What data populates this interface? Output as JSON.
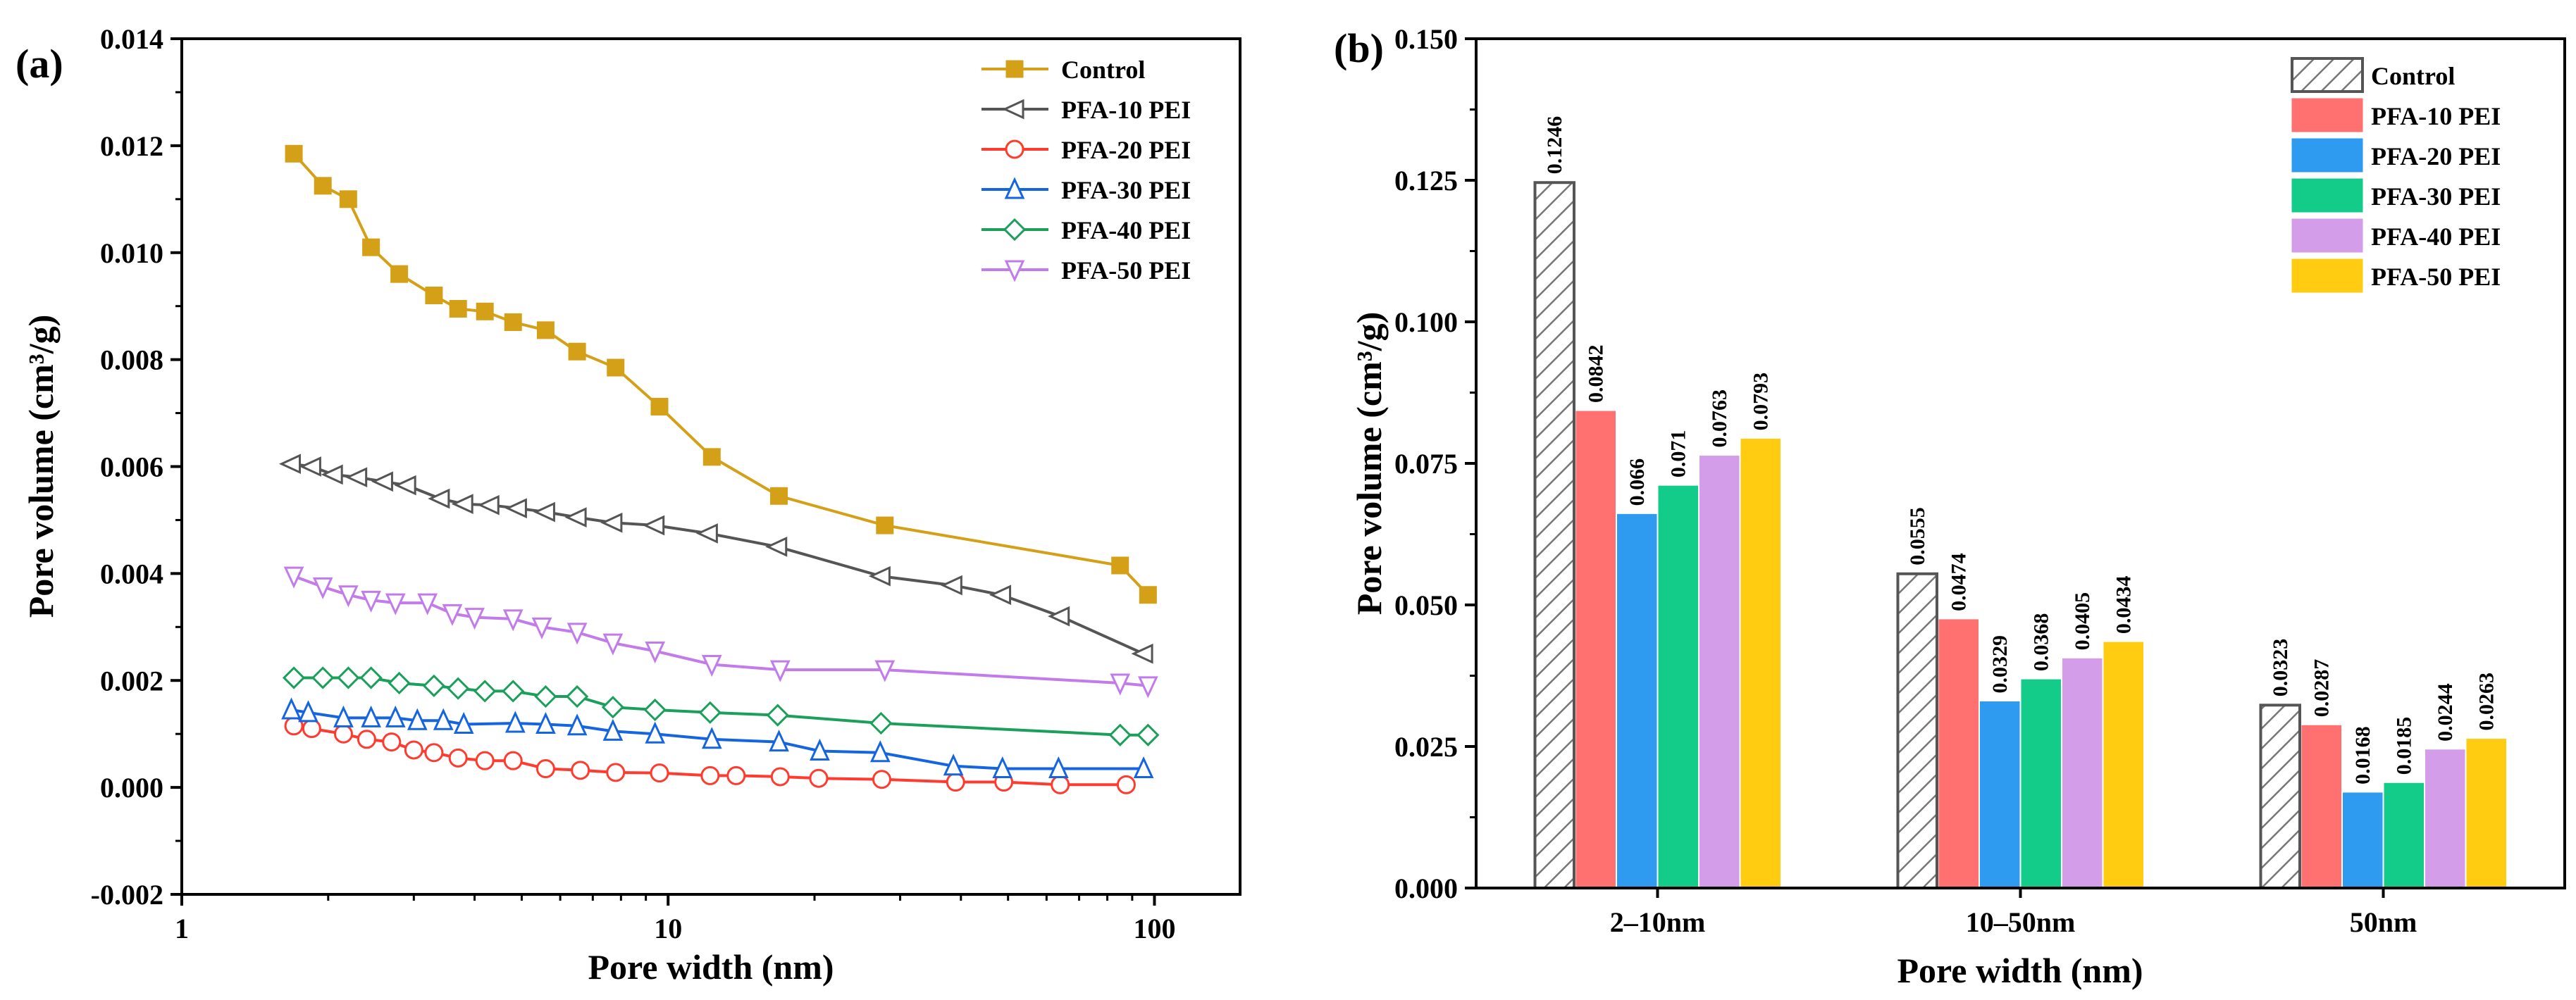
{
  "chart_data": [
    {
      "panel_label": "(a)",
      "type": "line",
      "xscale": "log",
      "xlabel": "Pore width (nm)",
      "ylabel": "Pore volume (cm³/g)",
      "xlim": [
        1,
        150
      ],
      "ylim": [
        -0.002,
        0.014
      ],
      "xticks": [
        1,
        10,
        100
      ],
      "xtick_labels": [
        "1",
        "10",
        "100"
      ],
      "yticks": [
        -0.002,
        0,
        0.002,
        0.004,
        0.006,
        0.008,
        0.01,
        0.012,
        0.014
      ],
      "ytick_labels": [
        "-0.002",
        "0.000",
        "0.002",
        "0.004",
        "0.006",
        "0.008",
        "0.010",
        "0.012",
        "0.014"
      ],
      "legend_position": "top-right",
      "series": [
        {
          "name": "Control",
          "color": "#D4A017",
          "marker": "square-filled",
          "x": [
            1.7,
            1.95,
            2.2,
            2.45,
            2.8,
            3.3,
            3.7,
            4.2,
            4.8,
            5.6,
            6.5,
            7.8,
            9.6,
            12.3,
            16.9,
            27.9,
            85.0,
            97.0
          ],
          "y": [
            0.01185,
            0.01125,
            0.011,
            0.0101,
            0.0096,
            0.0092,
            0.00895,
            0.0089,
            0.0087,
            0.00855,
            0.00815,
            0.00785,
            0.00712,
            0.00618,
            0.00545,
            0.0049,
            0.00415,
            0.0036
          ]
        },
        {
          "name": "PFA-10 PEI",
          "color": "#555555",
          "marker": "triangle-left-open",
          "x": [
            1.68,
            1.85,
            2.05,
            2.3,
            2.6,
            2.9,
            3.4,
            3.8,
            4.3,
            4.9,
            5.6,
            6.5,
            7.7,
            9.4,
            12.1,
            16.8,
            27.4,
            38.5,
            48.5,
            64.0,
            95.0
          ],
          "y": [
            0.00605,
            0.006,
            0.00585,
            0.0058,
            0.00572,
            0.00565,
            0.0054,
            0.0053,
            0.00528,
            0.00522,
            0.00515,
            0.00505,
            0.00495,
            0.0049,
            0.00475,
            0.0045,
            0.00395,
            0.00378,
            0.0036,
            0.0032,
            0.0025
          ]
        },
        {
          "name": "PFA-20 PEI",
          "color": "#FF3B30",
          "marker": "circle-open",
          "x": [
            1.7,
            1.85,
            2.15,
            2.4,
            2.7,
            3.0,
            3.3,
            3.7,
            4.2,
            4.8,
            5.6,
            6.6,
            7.8,
            9.6,
            12.2,
            13.8,
            17.0,
            20.4,
            27.5,
            39.0,
            49.0,
            64.0,
            87.5
          ],
          "y": [
            0.00115,
            0.0011,
            0.001,
            0.0009,
            0.00085,
            0.0007,
            0.00065,
            0.00055,
            0.0005,
            0.0005,
            0.00035,
            0.00032,
            0.00028,
            0.00027,
            0.00022,
            0.00022,
            0.0002,
            0.00017,
            0.00015,
            0.0001,
            0.0001,
            5e-05,
            5e-05
          ]
        },
        {
          "name": "PFA-30 PEI",
          "color": "#1565E0",
          "marker": "triangle-up-open",
          "x": [
            1.68,
            1.82,
            2.15,
            2.45,
            2.75,
            3.05,
            3.45,
            3.8,
            4.85,
            5.6,
            6.5,
            7.7,
            9.4,
            12.3,
            16.9,
            20.5,
            27.3,
            38.6,
            48.7,
            63.5,
            95.0
          ],
          "y": [
            0.00145,
            0.0014,
            0.0013,
            0.0013,
            0.0013,
            0.00125,
            0.00125,
            0.00118,
            0.0012,
            0.00118,
            0.00115,
            0.00105,
            0.001,
            0.0009,
            0.00085,
            0.00068,
            0.00065,
            0.0004,
            0.00035,
            0.00035,
            0.00035
          ]
        },
        {
          "name": "PFA-40 PEI",
          "color": "#1AA05A",
          "marker": "diamond-open",
          "x": [
            1.7,
            1.95,
            2.2,
            2.45,
            2.8,
            3.3,
            3.7,
            4.2,
            4.8,
            5.6,
            6.5,
            7.7,
            9.4,
            12.2,
            16.8,
            27.4,
            85.0,
            97.0
          ],
          "y": [
            0.00205,
            0.00205,
            0.00205,
            0.00205,
            0.00195,
            0.0019,
            0.00185,
            0.0018,
            0.0018,
            0.0017,
            0.0017,
            0.0015,
            0.00145,
            0.0014,
            0.00135,
            0.0012,
            0.00098,
            0.00098
          ]
        },
        {
          "name": "PFA-50 PEI",
          "color": "#C27BEA",
          "marker": "triangle-down-open",
          "x": [
            1.7,
            1.95,
            2.2,
            2.45,
            2.75,
            3.2,
            3.6,
            4.0,
            4.8,
            5.5,
            6.5,
            7.7,
            9.4,
            12.3,
            17.0,
            27.9,
            85.0,
            97.0
          ],
          "y": [
            0.00395,
            0.00375,
            0.0036,
            0.0035,
            0.00345,
            0.00345,
            0.00325,
            0.00318,
            0.00315,
            0.003,
            0.0029,
            0.0027,
            0.00255,
            0.0023,
            0.0022,
            0.0022,
            0.00195,
            0.0019
          ]
        }
      ]
    },
    {
      "panel_label": "(b)",
      "type": "bar",
      "xlabel": "Pore width (nm)",
      "ylabel": "Pore volume (cm³/g)",
      "ylim": [
        0,
        0.15
      ],
      "yticks": [
        0,
        0.025,
        0.05,
        0.075,
        0.1,
        0.125,
        0.15
      ],
      "ytick_labels": [
        "0.000",
        "0.025",
        "0.050",
        "0.075",
        "0.100",
        "0.125",
        "0.150"
      ],
      "categories": [
        "2–10nm",
        "10–50nm",
        "50nm"
      ],
      "legend_position": "top-right",
      "series": [
        {
          "name": "Control",
          "color": "#FFFFFF",
          "pattern": "hatch",
          "values": [
            0.1246,
            0.0555,
            0.0323
          ],
          "labels": [
            "0.1246",
            "0.0555",
            "0.0323"
          ]
        },
        {
          "name": "PFA-10 PEI",
          "color": "#FF7070",
          "values": [
            0.0842,
            0.0474,
            0.0287
          ],
          "labels": [
            "0.0842",
            "0.0474",
            "0.0287"
          ]
        },
        {
          "name": "PFA-20 PEI",
          "color": "#2E9BF0",
          "values": [
            0.066,
            0.0329,
            0.0168
          ],
          "labels": [
            "0.066",
            "0.0329",
            "0.0168"
          ]
        },
        {
          "name": "PFA-30 PEI",
          "color": "#14CC8A",
          "values": [
            0.071,
            0.0368,
            0.0185
          ],
          "labels": [
            "0.071",
            "0.0368",
            "0.0185"
          ]
        },
        {
          "name": "PFA-40 PEI",
          "color": "#D39DEA",
          "values": [
            0.0763,
            0.0405,
            0.0244
          ],
          "labels": [
            "0.0763",
            "0.0405",
            "0.0244"
          ]
        },
        {
          "name": "PFA-50 PEI",
          "color": "#FFCC12",
          "values": [
            0.0793,
            0.0434,
            0.0263
          ],
          "labels": [
            "0.0793",
            "0.0434",
            "0.0263"
          ]
        }
      ]
    }
  ]
}
